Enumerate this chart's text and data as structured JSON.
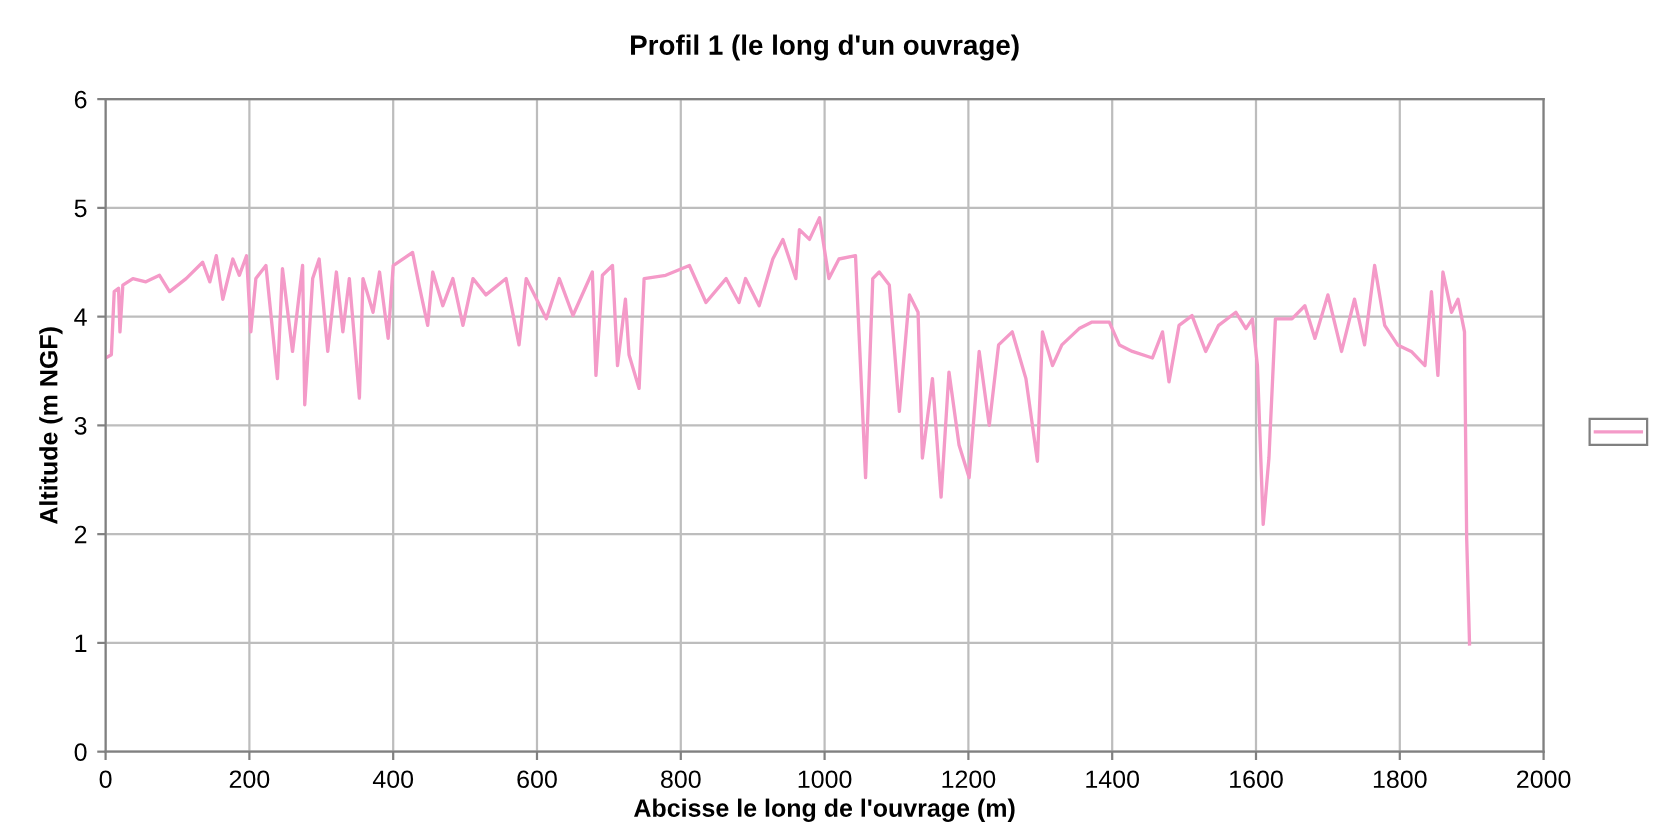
{
  "chart_data": {
    "type": "line",
    "title": "Profil 1 (le long d'un ouvrage)",
    "xlabel": "Abcisse le long de l'ouvrage (m)",
    "ylabel": "Altitude (m NGF)",
    "xlim": [
      0,
      2000
    ],
    "xticks": [
      0,
      200,
      400,
      600,
      800,
      1000,
      1200,
      1400,
      1600,
      1800,
      2000
    ],
    "ylim": [
      0,
      6
    ],
    "yticks": [
      0,
      1,
      2,
      3,
      4,
      5,
      6
    ],
    "grid": true,
    "marker": "none",
    "line_style": "solid",
    "series": [
      {
        "color": "#f49ac8",
        "x": [
          0,
          8,
          12,
          18,
          20,
          24,
          38,
          56,
          75,
          89,
          112,
          135,
          145,
          154,
          163,
          177,
          186,
          196,
          202,
          209,
          223,
          239,
          246,
          260,
          274,
          277,
          288,
          297,
          309,
          321,
          330,
          339,
          353,
          358,
          372,
          381,
          393,
          400,
          427,
          436,
          448,
          455,
          469,
          483,
          497,
          511,
          529,
          557,
          575,
          585,
          613,
          631,
          650,
          677,
          682,
          691,
          705,
          712,
          723,
          728,
          742,
          749,
          779,
          812,
          835,
          863,
          881,
          890,
          909,
          928,
          942,
          960,
          965,
          979,
          993,
          1006,
          1020,
          1043,
          1057,
          1067,
          1076,
          1090,
          1104,
          1118,
          1130,
          1136,
          1150,
          1162,
          1173,
          1187,
          1201,
          1215,
          1229,
          1242,
          1261,
          1280,
          1296,
          1303,
          1317,
          1330,
          1354,
          1372,
          1396,
          1410,
          1428,
          1456,
          1470,
          1479,
          1493,
          1511,
          1530,
          1548,
          1572,
          1586,
          1595,
          1602,
          1610,
          1618,
          1627,
          1650,
          1668,
          1682,
          1700,
          1719,
          1737,
          1751,
          1765,
          1779,
          1797,
          1816,
          1835,
          1844,
          1853,
          1860,
          1872,
          1881,
          1890,
          1893,
          1897
        ],
        "values": [
          3.62,
          3.65,
          4.23,
          4.26,
          3.86,
          4.29,
          4.35,
          4.32,
          4.38,
          4.23,
          4.35,
          4.5,
          4.32,
          4.56,
          4.16,
          4.53,
          4.38,
          4.56,
          3.86,
          4.35,
          4.47,
          3.43,
          4.44,
          3.68,
          4.47,
          3.19,
          4.35,
          4.53,
          3.68,
          4.41,
          3.86,
          4.35,
          3.25,
          4.35,
          4.04,
          4.41,
          3.8,
          4.47,
          4.59,
          4.29,
          3.92,
          4.41,
          4.1,
          4.35,
          3.92,
          4.35,
          4.2,
          4.35,
          3.74,
          4.35,
          3.98,
          4.35,
          4.01,
          4.41,
          3.46,
          4.38,
          4.47,
          3.55,
          4.16,
          3.65,
          3.34,
          4.35,
          4.38,
          4.47,
          4.13,
          4.35,
          4.13,
          4.35,
          4.1,
          4.53,
          4.71,
          4.35,
          4.8,
          4.71,
          4.91,
          4.35,
          4.53,
          4.56,
          2.52,
          4.35,
          4.41,
          4.29,
          3.13,
          4.2,
          4.04,
          2.7,
          3.43,
          2.34,
          3.49,
          2.82,
          2.52,
          3.68,
          3.0,
          3.74,
          3.86,
          3.43,
          2.67,
          3.86,
          3.55,
          3.74,
          3.89,
          3.95,
          3.95,
          3.74,
          3.68,
          3.62,
          3.86,
          3.4,
          3.92,
          4.01,
          3.68,
          3.92,
          4.04,
          3.89,
          3.98,
          3.55,
          2.09,
          2.7,
          3.98,
          3.98,
          4.1,
          3.8,
          4.2,
          3.68,
          4.16,
          3.74,
          4.47,
          3.92,
          3.74,
          3.68,
          3.55,
          4.23,
          3.46,
          4.41,
          4.04,
          4.16,
          3.86,
          1.97,
          0.99
        ]
      }
    ]
  }
}
